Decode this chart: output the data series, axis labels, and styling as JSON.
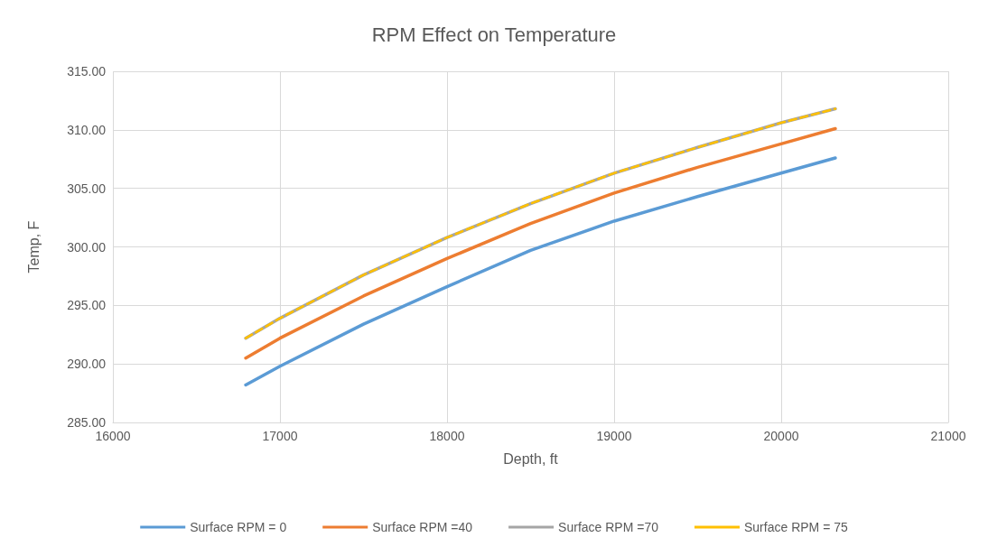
{
  "chart_data": {
    "type": "line",
    "title": "RPM Effect on Temperature",
    "xlabel": "Depth, ft",
    "ylabel": "Temp, F",
    "x": [
      16795,
      17000,
      17500,
      18000,
      18500,
      19000,
      19500,
      20000,
      20324
    ],
    "series": [
      {
        "name": "Surface RPM = 0",
        "color": "#5b9bd5",
        "line_style": "solid",
        "values": [
          288.2,
          289.8,
          293.4,
          296.6,
          299.7,
          302.2,
          304.3,
          306.3,
          307.6
        ]
      },
      {
        "name": "Surface RPM =40",
        "color": "#ed7d31",
        "line_style": "solid",
        "values": [
          290.5,
          292.2,
          295.8,
          299.0,
          302.0,
          304.6,
          306.8,
          308.8,
          310.1
        ]
      },
      {
        "name": "Surface RPM =70",
        "color": "#a5a5a5",
        "line_style": "solid",
        "values": [
          292.2,
          293.9,
          297.6,
          300.8,
          303.7,
          306.3,
          308.5,
          310.6,
          311.8
        ]
      },
      {
        "name": "Surface RPM = 75",
        "color": "#ffc000",
        "line_style": "dashed",
        "values": [
          292.2,
          293.9,
          297.6,
          300.8,
          303.7,
          306.3,
          308.5,
          310.6,
          311.8
        ]
      }
    ],
    "xlim": [
      16000,
      21000
    ],
    "xticks": [
      16000,
      17000,
      18000,
      19000,
      20000,
      21000
    ],
    "ylim": [
      285,
      315
    ],
    "yticks": [
      {
        "value": 285,
        "label": "285.00"
      },
      {
        "value": 290,
        "label": "290.00"
      },
      {
        "value": 295,
        "label": "295.00"
      },
      {
        "value": 300,
        "label": "300.00"
      },
      {
        "value": 305,
        "label": "305.00"
      },
      {
        "value": 310,
        "label": "310.00"
      },
      {
        "value": 315,
        "label": "315.00"
      }
    ],
    "grid": true,
    "legend": "bottom",
    "marker": "none"
  }
}
